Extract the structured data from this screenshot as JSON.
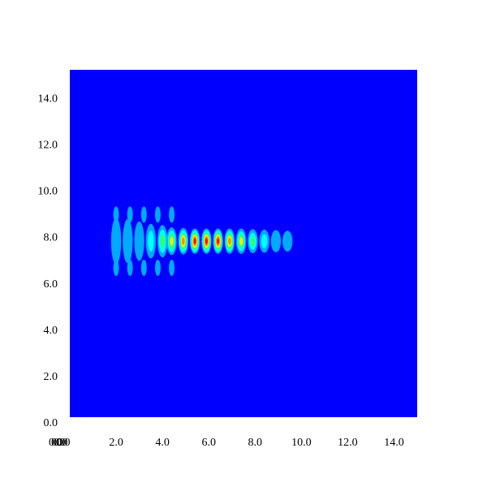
{
  "chart_data": {
    "type": "heatmap",
    "title": "",
    "xlabel": "",
    "ylabel": "",
    "xlim": [
      0,
      15
    ],
    "ylim": [
      0,
      15
    ],
    "x_ticks": [
      "0.0",
      "2.0",
      "4.0",
      "6.0",
      "8.0",
      "10.0",
      "12.0",
      "14.0"
    ],
    "y_ticks": [
      "0.0",
      "2.0",
      "4.0",
      "6.0",
      "8.0",
      "10.0",
      "12.0",
      "14.0"
    ],
    "x_tick_values": [
      0,
      2,
      4,
      6,
      8,
      10,
      12,
      14
    ],
    "y_tick_values": [
      0,
      2,
      4,
      6,
      8,
      10,
      12,
      14
    ],
    "x_origin_overlap_labels": [
      "0.0",
      "0.0",
      "0.0"
    ],
    "background_color": "#0000ff",
    "colormap": [
      "#0000ff",
      "#00aaff",
      "#00ffff",
      "#33ff66",
      "#ffee00",
      "#ff8800",
      "#ff0000"
    ],
    "grid": false,
    "legend": "none",
    "wave_packet": {
      "fringe_x": [
        2.0,
        2.5,
        3.0,
        3.5,
        4.0,
        4.4,
        4.9,
        5.4,
        5.9,
        6.4,
        6.9,
        7.4,
        7.9,
        8.4,
        8.9,
        9.4
      ],
      "fringe_level": [
        0.05,
        0.1,
        0.2,
        0.4,
        0.55,
        0.7,
        0.82,
        0.95,
        1.0,
        0.92,
        0.82,
        0.68,
        0.52,
        0.36,
        0.22,
        0.1
      ],
      "fringe_half_width_y": [
        1.0,
        0.95,
        0.85,
        0.75,
        0.7,
        0.6,
        0.58,
        0.55,
        0.55,
        0.55,
        0.55,
        0.55,
        0.52,
        0.5,
        0.48,
        0.45
      ],
      "center_y": 7.6,
      "side_lobe_x": [
        2.0,
        2.6,
        3.2,
        3.8,
        4.4
      ],
      "side_lobe_offset_y": 1.15,
      "side_lobe_level": 0.15
    }
  }
}
